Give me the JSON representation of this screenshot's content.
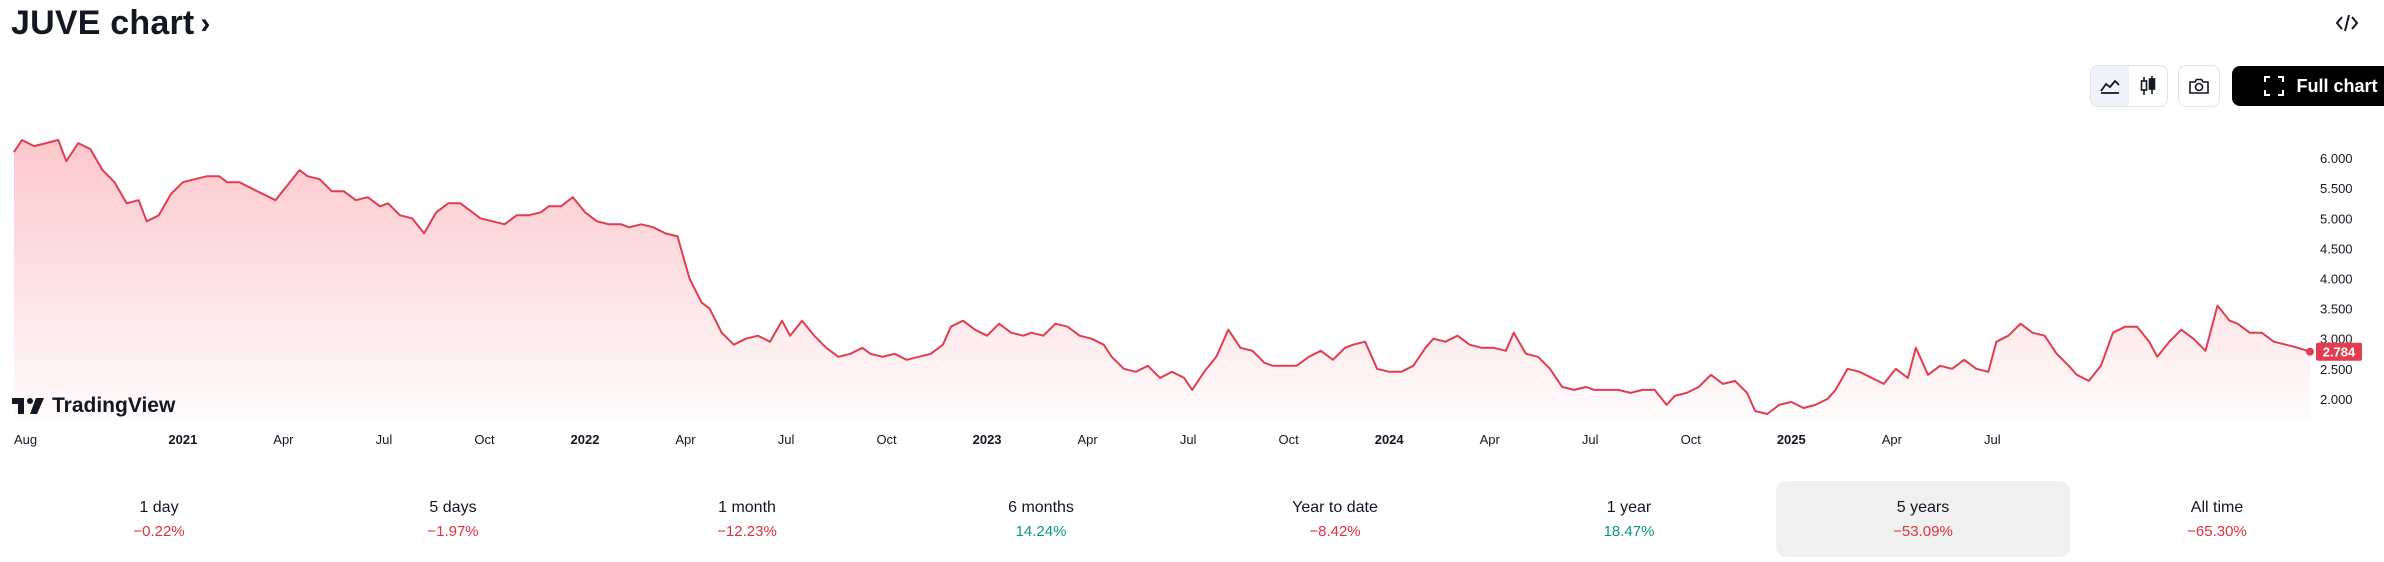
{
  "header": {
    "title": "JUVE chart",
    "chevron": "›",
    "embed_icon": "code-icon"
  },
  "toolbar": {
    "area_icon": "area-chart-icon",
    "candles_icon": "candlestick-icon",
    "snapshot_icon": "camera-icon",
    "full_chart_label": "Full chart",
    "full_chart_icon": "fullscreen-icon"
  },
  "watermark": {
    "text": "TradingView"
  },
  "chart_data": {
    "type": "area",
    "series": [
      {
        "values": [
          [
            2020.58,
            6.1
          ],
          [
            2020.6,
            6.3
          ],
          [
            2020.63,
            6.2
          ],
          [
            2020.66,
            6.25
          ],
          [
            2020.69,
            6.3
          ],
          [
            2020.71,
            5.95
          ],
          [
            2020.74,
            6.25
          ],
          [
            2020.77,
            6.15
          ],
          [
            2020.8,
            5.8
          ],
          [
            2020.83,
            5.6
          ],
          [
            2020.86,
            5.25
          ],
          [
            2020.89,
            5.3
          ],
          [
            2020.91,
            4.95
          ],
          [
            2020.94,
            5.05
          ],
          [
            2020.97,
            5.4
          ],
          [
            2021.0,
            5.6
          ],
          [
            2021.03,
            5.65
          ],
          [
            2021.06,
            5.7
          ],
          [
            2021.09,
            5.7
          ],
          [
            2021.11,
            5.6
          ],
          [
            2021.14,
            5.6
          ],
          [
            2021.17,
            5.5
          ],
          [
            2021.2,
            5.4
          ],
          [
            2021.23,
            5.3
          ],
          [
            2021.26,
            5.55
          ],
          [
            2021.29,
            5.8
          ],
          [
            2021.31,
            5.7
          ],
          [
            2021.34,
            5.65
          ],
          [
            2021.37,
            5.45
          ],
          [
            2021.4,
            5.45
          ],
          [
            2021.43,
            5.3
          ],
          [
            2021.46,
            5.35
          ],
          [
            2021.49,
            5.2
          ],
          [
            2021.51,
            5.25
          ],
          [
            2021.54,
            5.05
          ],
          [
            2021.57,
            5.0
          ],
          [
            2021.6,
            4.75
          ],
          [
            2021.63,
            5.1
          ],
          [
            2021.66,
            5.25
          ],
          [
            2021.69,
            5.25
          ],
          [
            2021.71,
            5.15
          ],
          [
            2021.74,
            5.0
          ],
          [
            2021.77,
            4.95
          ],
          [
            2021.8,
            4.9
          ],
          [
            2021.83,
            5.05
          ],
          [
            2021.86,
            5.05
          ],
          [
            2021.89,
            5.1
          ],
          [
            2021.91,
            5.2
          ],
          [
            2021.94,
            5.2
          ],
          [
            2021.97,
            5.35
          ],
          [
            2022.0,
            5.1
          ],
          [
            2022.03,
            4.95
          ],
          [
            2022.06,
            4.9
          ],
          [
            2022.09,
            4.9
          ],
          [
            2022.11,
            4.85
          ],
          [
            2022.14,
            4.9
          ],
          [
            2022.17,
            4.85
          ],
          [
            2022.2,
            4.75
          ],
          [
            2022.23,
            4.7
          ],
          [
            2022.26,
            4.0
          ],
          [
            2022.29,
            3.6
          ],
          [
            2022.31,
            3.5
          ],
          [
            2022.34,
            3.1
          ],
          [
            2022.37,
            2.9
          ],
          [
            2022.4,
            3.0
          ],
          [
            2022.43,
            3.05
          ],
          [
            2022.46,
            2.95
          ],
          [
            2022.49,
            3.3
          ],
          [
            2022.51,
            3.05
          ],
          [
            2022.54,
            3.3
          ],
          [
            2022.57,
            3.05
          ],
          [
            2022.6,
            2.85
          ],
          [
            2022.63,
            2.7
          ],
          [
            2022.66,
            2.75
          ],
          [
            2022.69,
            2.85
          ],
          [
            2022.71,
            2.75
          ],
          [
            2022.74,
            2.7
          ],
          [
            2022.77,
            2.75
          ],
          [
            2022.8,
            2.65
          ],
          [
            2022.83,
            2.7
          ],
          [
            2022.86,
            2.75
          ],
          [
            2022.89,
            2.9
          ],
          [
            2022.91,
            3.2
          ],
          [
            2022.94,
            3.3
          ],
          [
            2022.97,
            3.15
          ],
          [
            2023.0,
            3.05
          ],
          [
            2023.03,
            3.25
          ],
          [
            2023.06,
            3.1
          ],
          [
            2023.09,
            3.05
          ],
          [
            2023.11,
            3.1
          ],
          [
            2023.14,
            3.05
          ],
          [
            2023.17,
            3.25
          ],
          [
            2023.2,
            3.2
          ],
          [
            2023.23,
            3.05
          ],
          [
            2023.26,
            3.0
          ],
          [
            2023.29,
            2.9
          ],
          [
            2023.31,
            2.7
          ],
          [
            2023.34,
            2.5
          ],
          [
            2023.37,
            2.45
          ],
          [
            2023.4,
            2.55
          ],
          [
            2023.43,
            2.35
          ],
          [
            2023.46,
            2.45
          ],
          [
            2023.49,
            2.35
          ],
          [
            2023.51,
            2.15
          ],
          [
            2023.54,
            2.45
          ],
          [
            2023.57,
            2.7
          ],
          [
            2023.6,
            3.15
          ],
          [
            2023.63,
            2.85
          ],
          [
            2023.66,
            2.8
          ],
          [
            2023.69,
            2.6
          ],
          [
            2023.71,
            2.55
          ],
          [
            2023.74,
            2.55
          ],
          [
            2023.77,
            2.55
          ],
          [
            2023.8,
            2.7
          ],
          [
            2023.83,
            2.8
          ],
          [
            2023.86,
            2.65
          ],
          [
            2023.89,
            2.85
          ],
          [
            2023.91,
            2.9
          ],
          [
            2023.94,
            2.95
          ],
          [
            2023.97,
            2.5
          ],
          [
            2024.0,
            2.45
          ],
          [
            2024.03,
            2.45
          ],
          [
            2024.06,
            2.55
          ],
          [
            2024.09,
            2.85
          ],
          [
            2024.11,
            3.0
          ],
          [
            2024.14,
            2.95
          ],
          [
            2024.17,
            3.05
          ],
          [
            2024.2,
            2.9
          ],
          [
            2024.23,
            2.85
          ],
          [
            2024.26,
            2.85
          ],
          [
            2024.29,
            2.8
          ],
          [
            2024.31,
            3.1
          ],
          [
            2024.34,
            2.75
          ],
          [
            2024.37,
            2.7
          ],
          [
            2024.4,
            2.5
          ],
          [
            2024.43,
            2.2
          ],
          [
            2024.46,
            2.15
          ],
          [
            2024.49,
            2.2
          ],
          [
            2024.51,
            2.15
          ],
          [
            2024.54,
            2.15
          ],
          [
            2024.57,
            2.15
          ],
          [
            2024.6,
            2.1
          ],
          [
            2024.63,
            2.15
          ],
          [
            2024.66,
            2.15
          ],
          [
            2024.69,
            1.9
          ],
          [
            2024.71,
            2.05
          ],
          [
            2024.74,
            2.1
          ],
          [
            2024.77,
            2.2
          ],
          [
            2024.8,
            2.4
          ],
          [
            2024.83,
            2.25
          ],
          [
            2024.86,
            2.3
          ],
          [
            2024.89,
            2.1
          ],
          [
            2024.91,
            1.8
          ],
          [
            2024.94,
            1.75
          ],
          [
            2024.97,
            1.9
          ],
          [
            2025.0,
            1.95
          ],
          [
            2025.03,
            1.85
          ],
          [
            2025.06,
            1.9
          ],
          [
            2025.09,
            2.0
          ],
          [
            2025.11,
            2.15
          ],
          [
            2025.14,
            2.5
          ],
          [
            2025.17,
            2.45
          ],
          [
            2025.2,
            2.35
          ],
          [
            2025.23,
            2.25
          ],
          [
            2025.26,
            2.5
          ],
          [
            2025.29,
            2.35
          ],
          [
            2025.31,
            2.85
          ],
          [
            2025.34,
            2.4
          ],
          [
            2025.37,
            2.55
          ],
          [
            2025.4,
            2.5
          ],
          [
            2025.43,
            2.65
          ],
          [
            2025.46,
            2.5
          ],
          [
            2025.49,
            2.45
          ],
          [
            2025.51,
            2.95
          ],
          [
            2025.54,
            3.05
          ],
          [
            2025.57,
            3.25
          ],
          [
            2025.6,
            3.1
          ],
          [
            2025.63,
            3.05
          ],
          [
            2025.66,
            2.75
          ],
          [
            2025.69,
            2.55
          ],
          [
            2025.71,
            2.4
          ],
          [
            2025.74,
            2.3
          ],
          [
            2025.77,
            2.55
          ],
          [
            2025.8,
            3.1
          ],
          [
            2025.83,
            3.2
          ],
          [
            2025.86,
            3.2
          ],
          [
            2025.89,
            2.95
          ],
          [
            2025.91,
            2.7
          ],
          [
            2025.94,
            2.95
          ],
          [
            2025.97,
            3.15
          ],
          [
            2026.0,
            3.0
          ],
          [
            2026.03,
            2.8
          ],
          [
            2026.06,
            3.55
          ],
          [
            2026.09,
            3.3
          ],
          [
            2026.11,
            3.25
          ],
          [
            2026.14,
            3.1
          ],
          [
            2026.17,
            3.1
          ],
          [
            2026.2,
            2.95
          ],
          [
            2026.23,
            2.9
          ],
          [
            2026.26,
            2.85
          ],
          [
            2026.29,
            2.784
          ]
        ],
        "color": "#e23c50"
      }
    ],
    "x_ticks": [
      {
        "label": "Aug",
        "x": 2020.58,
        "bold": false
      },
      {
        "label": "2021",
        "x": 2021.0,
        "bold": true
      },
      {
        "label": "Apr",
        "x": 2021.25,
        "bold": false
      },
      {
        "label": "Jul",
        "x": 2021.5,
        "bold": false
      },
      {
        "label": "Oct",
        "x": 2021.75,
        "bold": false
      },
      {
        "label": "2022",
        "x": 2022.0,
        "bold": true
      },
      {
        "label": "Apr",
        "x": 2022.25,
        "bold": false
      },
      {
        "label": "Jul",
        "x": 2022.5,
        "bold": false
      },
      {
        "label": "Oct",
        "x": 2022.75,
        "bold": false
      },
      {
        "label": "2023",
        "x": 2023.0,
        "bold": true
      },
      {
        "label": "Apr",
        "x": 2023.25,
        "bold": false
      },
      {
        "label": "Jul",
        "x": 2023.5,
        "bold": false
      },
      {
        "label": "Oct",
        "x": 2023.75,
        "bold": false
      },
      {
        "label": "2024",
        "x": 2024.0,
        "bold": true
      },
      {
        "label": "Apr",
        "x": 2024.25,
        "bold": false
      },
      {
        "label": "Jul",
        "x": 2024.5,
        "bold": false
      },
      {
        "label": "Oct",
        "x": 2024.75,
        "bold": false
      },
      {
        "label": "2025",
        "x": 2025.0,
        "bold": true
      },
      {
        "label": "Apr",
        "x": 2025.25,
        "bold": false
      },
      {
        "label": "Jul",
        "x": 2025.5,
        "bold": false
      }
    ],
    "y_ticks": [
      {
        "label": "6.000",
        "y": 6.0
      },
      {
        "label": "5.500",
        "y": 5.5
      },
      {
        "label": "5.000",
        "y": 5.0
      },
      {
        "label": "4.500",
        "y": 4.5
      },
      {
        "label": "4.000",
        "y": 4.0
      },
      {
        "label": "3.500",
        "y": 3.5
      },
      {
        "label": "3.000",
        "y": 3.0
      },
      {
        "label": "2.500",
        "y": 2.5
      },
      {
        "label": "2.000",
        "y": 2.0
      }
    ],
    "last_price_label": "2.784",
    "last_price": 2.784,
    "ylim": [
      1.65,
      6.5
    ],
    "grid": false,
    "legend": "none"
  },
  "periods": [
    {
      "label": "1 day",
      "value": "−0.22%",
      "trend": "neg",
      "selected": false
    },
    {
      "label": "5 days",
      "value": "−1.97%",
      "trend": "neg",
      "selected": false
    },
    {
      "label": "1 month",
      "value": "−12.23%",
      "trend": "neg",
      "selected": false
    },
    {
      "label": "6 months",
      "value": "14.24%",
      "trend": "pos",
      "selected": false
    },
    {
      "label": "Year to date",
      "value": "−8.42%",
      "trend": "neg",
      "selected": false
    },
    {
      "label": "1 year",
      "value": "18.47%",
      "trend": "pos",
      "selected": false
    },
    {
      "label": "5 years",
      "value": "−53.09%",
      "trend": "neg",
      "selected": true
    },
    {
      "label": "All time",
      "value": "−65.30%",
      "trend": "neg",
      "selected": false
    }
  ]
}
